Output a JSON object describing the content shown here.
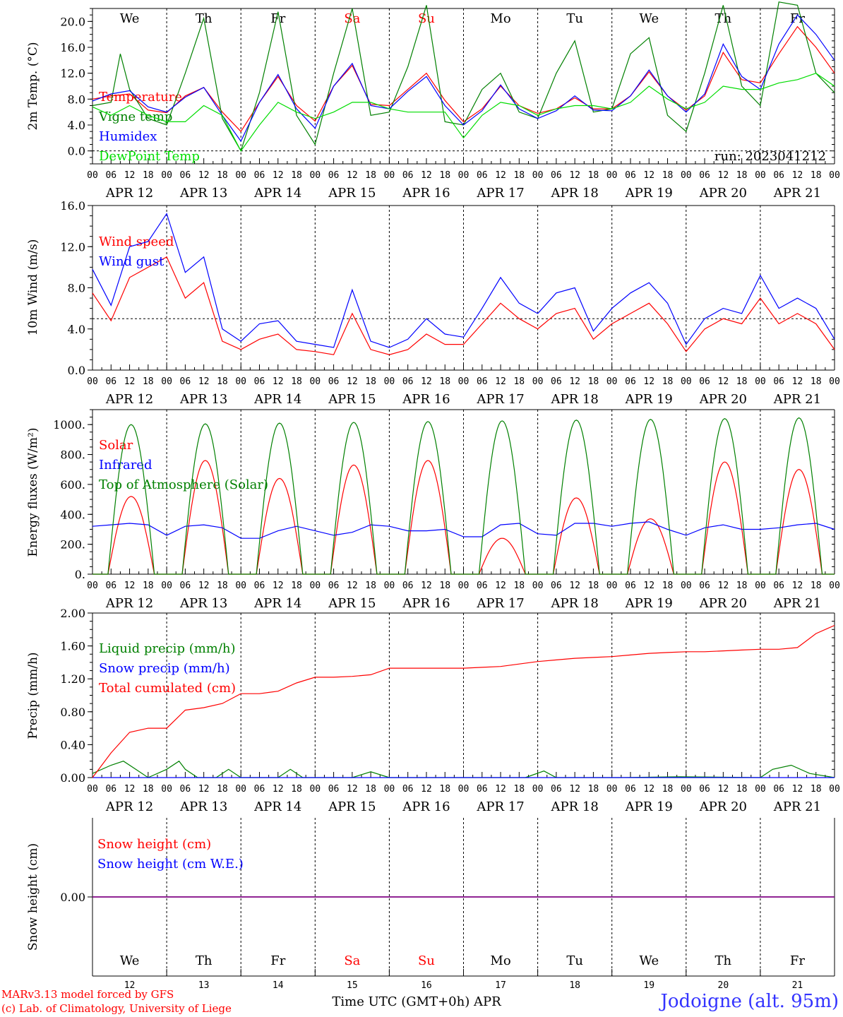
{
  "colors": {
    "red": "#ff0000",
    "green": "#008000",
    "blue": "#0000ff",
    "lime": "#00dd00",
    "purple": "#800080",
    "site": "#3333ff"
  },
  "x_axis": {
    "hour_ticks": [
      "00",
      "06",
      "12",
      "18"
    ],
    "end_tick": "00",
    "days": [
      "APR 12",
      "APR 13",
      "APR 14",
      "APR 15",
      "APR 16",
      "APR 17",
      "APR 18",
      "APR 19",
      "APR 20",
      "APR 21"
    ],
    "weekdays": [
      "We",
      "Th",
      "Fr",
      "Sa",
      "Su",
      "Mo",
      "Tu",
      "We",
      "Th",
      "Fr"
    ],
    "weekday_colors": [
      "#000000",
      "#000000",
      "#000000",
      "#ff0000",
      "#ff0000",
      "#000000",
      "#000000",
      "#000000",
      "#000000",
      "#000000"
    ],
    "day_numbers": [
      "12",
      "13",
      "14",
      "15",
      "16",
      "17",
      "18",
      "19",
      "20",
      "21"
    ],
    "bottom_title": "Time UTC (GMT+0h)",
    "bottom_month": "APR"
  },
  "footer": {
    "model": "MARv3.13 model forced by GFS",
    "copyright": "(c) Lab. of Climatology, University of Liege",
    "site": "Jodoigne (alt. 95m)"
  },
  "chart_data": [
    {
      "type": "line",
      "ylabel": "2m Temp. (°C)",
      "ylim": [
        -2.0,
        22.0
      ],
      "yticks": [
        "0.0",
        "4.0",
        "8.0",
        "12.0",
        "16.0",
        "20.0"
      ],
      "ytick_values": [
        0,
        4,
        8,
        12,
        16,
        20
      ],
      "ref_line": 0,
      "annotation": "run: 2023041212",
      "x_unit": "hours since 2023-04-12 00 UTC",
      "legend": [
        "Temperature",
        "Vigne temp",
        "Humidex",
        "DewPoint Temp"
      ],
      "series": [
        {
          "name": "Temperature",
          "color": "#ff0000",
          "x": [
            0,
            6,
            12,
            18,
            24,
            30,
            36,
            42,
            48,
            54,
            60,
            66,
            72,
            78,
            84,
            90,
            96,
            102,
            108,
            114,
            120,
            126,
            132,
            138,
            144,
            150,
            156,
            162,
            168,
            174,
            180,
            186,
            192,
            198,
            204,
            210,
            216,
            222,
            228,
            234,
            240
          ],
          "values": [
            8.0,
            8.5,
            8.8,
            6.3,
            5.9,
            8.5,
            9.8,
            6.0,
            3.0,
            7.5,
            11.5,
            7.0,
            4.6,
            10.0,
            13.2,
            7.2,
            7.0,
            9.5,
            12.0,
            7.8,
            4.5,
            6.5,
            10.0,
            7.0,
            5.8,
            6.5,
            8.2,
            6.5,
            6.5,
            8.5,
            12.2,
            8.5,
            6.3,
            8.5,
            15.2,
            11.0,
            10.5,
            15.0,
            19.2,
            16.0,
            12.0
          ]
        },
        {
          "name": "Vigne temp",
          "color": "#008000",
          "x": [
            0,
            6,
            9,
            12,
            18,
            24,
            30,
            36,
            42,
            48,
            54,
            60,
            66,
            72,
            78,
            84,
            90,
            96,
            102,
            108,
            114,
            120,
            126,
            132,
            138,
            144,
            150,
            156,
            162,
            168,
            174,
            180,
            186,
            192,
            198,
            204,
            210,
            216,
            222,
            228,
            234,
            240
          ],
          "values": [
            7.0,
            7.5,
            15.0,
            9.5,
            5.0,
            4.0,
            12.0,
            20.5,
            5.0,
            0.0,
            9.0,
            21.5,
            5.5,
            1.0,
            12.0,
            22.0,
            5.5,
            6.0,
            13.0,
            22.5,
            4.5,
            4.0,
            9.5,
            12.0,
            6.0,
            5.0,
            12.0,
            17.0,
            6.0,
            6.5,
            15.0,
            17.5,
            5.5,
            3.0,
            12.0,
            22.5,
            10.0,
            7.0,
            23.0,
            22.5,
            12.0,
            9.0
          ]
        },
        {
          "name": "Humidex",
          "color": "#0000ff",
          "x": [
            0,
            6,
            12,
            18,
            24,
            30,
            36,
            42,
            48,
            54,
            60,
            66,
            72,
            78,
            84,
            90,
            96,
            102,
            108,
            114,
            120,
            126,
            132,
            138,
            144,
            150,
            156,
            162,
            168,
            174,
            180,
            186,
            192,
            198,
            204,
            210,
            216,
            222,
            228,
            234,
            240
          ],
          "values": [
            7.7,
            8.8,
            9.3,
            6.8,
            6.0,
            8.3,
            9.8,
            5.5,
            1.5,
            7.5,
            11.8,
            6.5,
            3.5,
            10.0,
            13.5,
            7.0,
            6.5,
            9.2,
            11.5,
            7.0,
            4.0,
            6.2,
            10.2,
            6.5,
            5.0,
            6.2,
            8.5,
            6.3,
            6.2,
            8.5,
            12.5,
            8.5,
            6.0,
            8.8,
            16.5,
            11.5,
            9.5,
            16.5,
            21.0,
            18.0,
            14.0
          ]
        },
        {
          "name": "DewPoint Temp",
          "color": "#00dd00",
          "x": [
            0,
            6,
            12,
            18,
            24,
            30,
            36,
            42,
            48,
            54,
            60,
            66,
            72,
            78,
            84,
            90,
            96,
            102,
            108,
            114,
            120,
            126,
            132,
            138,
            144,
            150,
            156,
            162,
            168,
            174,
            180,
            186,
            192,
            198,
            204,
            210,
            216,
            222,
            228,
            234,
            240
          ],
          "values": [
            6.8,
            5.5,
            7.0,
            5.5,
            4.5,
            4.5,
            7.0,
            5.5,
            0.0,
            4.0,
            7.5,
            6.0,
            5.0,
            6.0,
            7.5,
            7.5,
            6.5,
            6.0,
            6.0,
            6.0,
            2.0,
            5.5,
            7.5,
            7.0,
            5.5,
            6.5,
            7.0,
            7.0,
            6.5,
            7.5,
            10.0,
            8.0,
            6.5,
            7.5,
            10.0,
            9.5,
            9.5,
            10.5,
            11.0,
            12.0,
            10.0
          ]
        }
      ]
    },
    {
      "type": "line",
      "ylabel": "10m Wind (m/s)",
      "ylim": [
        0.0,
        16.0
      ],
      "yticks": [
        "0.0",
        "4.0",
        "8.0",
        "12.0",
        "16.0"
      ],
      "ytick_values": [
        0,
        4,
        8,
        12,
        16
      ],
      "ref_line": 5,
      "x_unit": "hours since 2023-04-12 00 UTC",
      "legend": [
        "Wind speed",
        "Wind gust"
      ],
      "series": [
        {
          "name": "Wind speed",
          "color": "#ff0000",
          "x": [
            0,
            6,
            12,
            18,
            24,
            30,
            36,
            42,
            48,
            54,
            60,
            66,
            72,
            78,
            84,
            90,
            96,
            102,
            108,
            114,
            120,
            126,
            132,
            138,
            144,
            150,
            156,
            162,
            168,
            174,
            180,
            186,
            192,
            198,
            204,
            210,
            216,
            222,
            228,
            234,
            240
          ],
          "values": [
            7.5,
            4.8,
            9.0,
            10.0,
            11.0,
            7.0,
            8.5,
            2.8,
            2.0,
            3.0,
            3.5,
            2.0,
            1.8,
            1.5,
            5.5,
            2.0,
            1.5,
            2.0,
            3.5,
            2.5,
            2.5,
            4.5,
            6.5,
            5.0,
            4.0,
            5.5,
            6.0,
            3.0,
            4.5,
            5.5,
            6.5,
            4.5,
            1.8,
            4.0,
            5.0,
            4.5,
            7.0,
            4.5,
            5.5,
            4.5,
            2.0
          ]
        },
        {
          "name": "Wind gust",
          "color": "#0000ff",
          "x": [
            0,
            6,
            12,
            18,
            24,
            30,
            36,
            42,
            48,
            54,
            60,
            66,
            72,
            78,
            84,
            90,
            96,
            102,
            108,
            114,
            120,
            126,
            132,
            138,
            144,
            150,
            156,
            162,
            168,
            174,
            180,
            186,
            192,
            198,
            204,
            210,
            216,
            222,
            228,
            234,
            240
          ],
          "values": [
            9.8,
            6.3,
            12.0,
            12.5,
            15.2,
            9.5,
            11.0,
            4.0,
            2.8,
            4.5,
            4.8,
            2.8,
            2.5,
            2.2,
            7.8,
            2.8,
            2.2,
            3.0,
            5.0,
            3.5,
            3.2,
            6.0,
            9.0,
            6.5,
            5.5,
            7.5,
            8.0,
            3.8,
            6.0,
            7.5,
            8.5,
            6.5,
            2.5,
            5.0,
            6.0,
            5.5,
            9.2,
            6.0,
            7.0,
            6.0,
            3.0
          ]
        }
      ]
    },
    {
      "type": "line",
      "ylabel": "Energy fluxes (W/m²)",
      "ylim": [
        0,
        1100
      ],
      "yticks": [
        "0.",
        "200.",
        "400.",
        "600.",
        "800.",
        "1000."
      ],
      "ytick_values": [
        0,
        200,
        400,
        600,
        800,
        1000
      ],
      "x_unit": "hours since 2023-04-12 00 UTC",
      "legend": [
        "Solar",
        "Infrared",
        "Top of Atmosphere (Solar)"
      ],
      "series": [
        {
          "name": "Solar",
          "color": "#ff0000",
          "daily_peak_hour": 13,
          "daily_peaks": [
            520,
            760,
            640,
            730,
            760,
            240,
            510,
            370,
            750,
            700
          ]
        },
        {
          "name": "Infrared",
          "color": "#0000ff",
          "x": [
            0,
            6,
            12,
            18,
            24,
            30,
            36,
            42,
            48,
            54,
            60,
            66,
            72,
            78,
            84,
            90,
            96,
            102,
            108,
            114,
            120,
            126,
            132,
            138,
            144,
            150,
            156,
            162,
            168,
            174,
            180,
            186,
            192,
            198,
            204,
            210,
            216,
            222,
            228,
            234,
            240
          ],
          "values": [
            320,
            330,
            340,
            330,
            260,
            320,
            330,
            310,
            240,
            240,
            290,
            320,
            290,
            260,
            280,
            330,
            320,
            290,
            290,
            300,
            250,
            250,
            330,
            340,
            270,
            260,
            340,
            340,
            320,
            340,
            350,
            300,
            260,
            310,
            330,
            300,
            300,
            310,
            330,
            340,
            300
          ]
        },
        {
          "name": "Top of Atmosphere (Solar)",
          "color": "#008000",
          "daily_peak_hour": 13,
          "daily_peaks": [
            1000,
            1005,
            1010,
            1015,
            1020,
            1025,
            1030,
            1035,
            1040,
            1045
          ]
        }
      ]
    },
    {
      "type": "line",
      "ylabel": "Precip (mm/h)",
      "ylim": [
        0.0,
        2.0
      ],
      "yticks": [
        "0.00",
        "0.40",
        "0.80",
        "1.20",
        "1.60",
        "2.00"
      ],
      "ytick_values": [
        0,
        0.4,
        0.8,
        1.2,
        1.6,
        2.0
      ],
      "x_unit": "hours since 2023-04-12 00 UTC",
      "legend": [
        "Liquid precip (mm/h)",
        "Snow precip (mm/h)",
        "Total cumulated (cm)"
      ],
      "series": [
        {
          "name": "Liquid precip (mm/h)",
          "color": "#008000",
          "x": [
            0,
            6,
            10,
            14,
            18,
            24,
            28,
            30,
            34,
            40,
            44,
            48,
            52,
            60,
            64,
            68,
            72,
            84,
            90,
            96,
            120,
            140,
            146,
            150,
            170,
            190,
            216,
            220,
            226,
            232,
            240
          ],
          "values": [
            0.05,
            0.15,
            0.2,
            0.1,
            0.0,
            0.1,
            0.2,
            0.1,
            0.0,
            0.0,
            0.1,
            0.0,
            0.0,
            0.0,
            0.1,
            0.0,
            0.0,
            0.0,
            0.07,
            0.0,
            0.0,
            0.0,
            0.08,
            0.0,
            0.0,
            0.01,
            0.0,
            0.1,
            0.15,
            0.05,
            0.0
          ]
        },
        {
          "name": "Snow precip (mm/h)",
          "color": "#0000ff",
          "x": [
            0,
            240
          ],
          "values": [
            0,
            0
          ]
        },
        {
          "name": "Total cumulated (cm)",
          "color": "#ff0000",
          "x": [
            0,
            6,
            12,
            18,
            24,
            30,
            36,
            42,
            48,
            54,
            60,
            66,
            72,
            78,
            84,
            90,
            96,
            102,
            108,
            114,
            120,
            126,
            132,
            138,
            144,
            150,
            156,
            162,
            168,
            174,
            180,
            186,
            192,
            198,
            204,
            210,
            216,
            222,
            228,
            234,
            240
          ],
          "values": [
            0.0,
            0.3,
            0.55,
            0.6,
            0.6,
            0.82,
            0.85,
            0.9,
            1.02,
            1.02,
            1.05,
            1.15,
            1.22,
            1.22,
            1.23,
            1.25,
            1.33,
            1.33,
            1.33,
            1.33,
            1.33,
            1.34,
            1.35,
            1.38,
            1.41,
            1.43,
            1.45,
            1.46,
            1.47,
            1.49,
            1.51,
            1.52,
            1.53,
            1.53,
            1.54,
            1.55,
            1.56,
            1.56,
            1.58,
            1.75,
            1.85
          ]
        }
      ]
    },
    {
      "type": "line",
      "ylabel": "Snow height (cm)",
      "ylim": [
        -1.0,
        1.0
      ],
      "yticks": [
        "0.00"
      ],
      "ytick_values": [
        0
      ],
      "x_unit": "hours since 2023-04-12 00 UTC",
      "legend": [
        "Snow height (cm)",
        "Snow height (cm W.E.)"
      ],
      "series": [
        {
          "name": "Snow height (cm)",
          "color": "#ff0000",
          "x": [
            0,
            240
          ],
          "values": [
            0,
            0
          ]
        },
        {
          "name": "Snow height (cm W.E.)",
          "color": "#0000ff",
          "x": [
            0,
            240
          ],
          "values": [
            0,
            0
          ]
        }
      ]
    }
  ]
}
